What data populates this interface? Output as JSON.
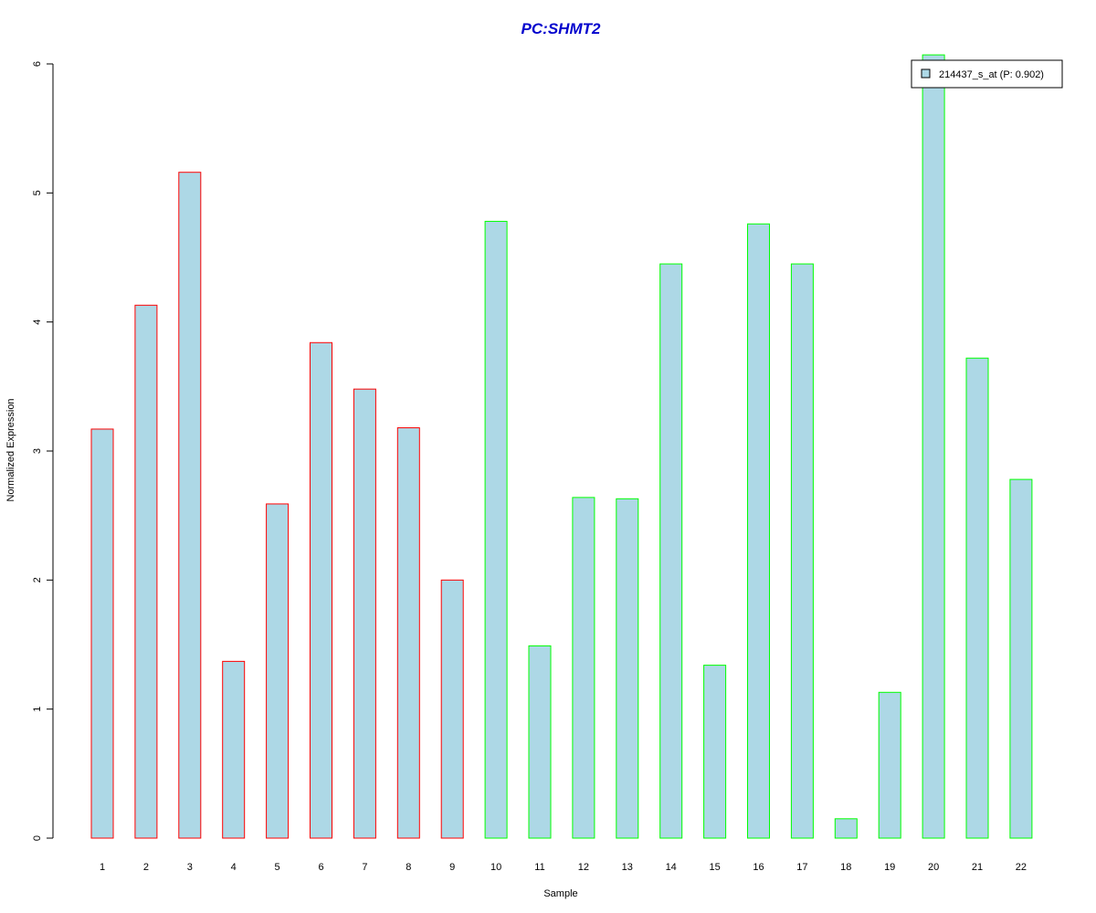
{
  "chart_data": {
    "type": "bar",
    "title": "PC:SHMT2",
    "xlabel": "Sample",
    "ylabel": "Normalized Expression",
    "ylim": [
      0,
      6
    ],
    "yticks": [
      "0",
      "1",
      "2",
      "3",
      "4",
      "5",
      "6"
    ],
    "categories": [
      "1",
      "2",
      "3",
      "4",
      "5",
      "6",
      "7",
      "8",
      "9",
      "10",
      "11",
      "12",
      "13",
      "14",
      "15",
      "16",
      "17",
      "18",
      "19",
      "20",
      "21",
      "22"
    ],
    "values": [
      3.17,
      4.13,
      5.16,
      1.37,
      2.59,
      3.84,
      3.48,
      3.18,
      2.0,
      4.78,
      1.49,
      2.64,
      2.63,
      4.45,
      1.34,
      4.76,
      4.45,
      0.15,
      1.13,
      6.07,
      3.72,
      2.78
    ],
    "groups": [
      "A",
      "A",
      "A",
      "A",
      "A",
      "A",
      "A",
      "A",
      "A",
      "B",
      "B",
      "B",
      "B",
      "B",
      "B",
      "B",
      "B",
      "B",
      "B",
      "B",
      "B",
      "B"
    ],
    "group_border_colors": {
      "A": "#ff0000",
      "B": "#00ff00"
    },
    "bar_fill_color": "#add8e6",
    "title_color": "#0000cd",
    "legend": {
      "label": "214437_s_at (P: 0.902)",
      "position": "top-right"
    },
    "grid": false
  }
}
